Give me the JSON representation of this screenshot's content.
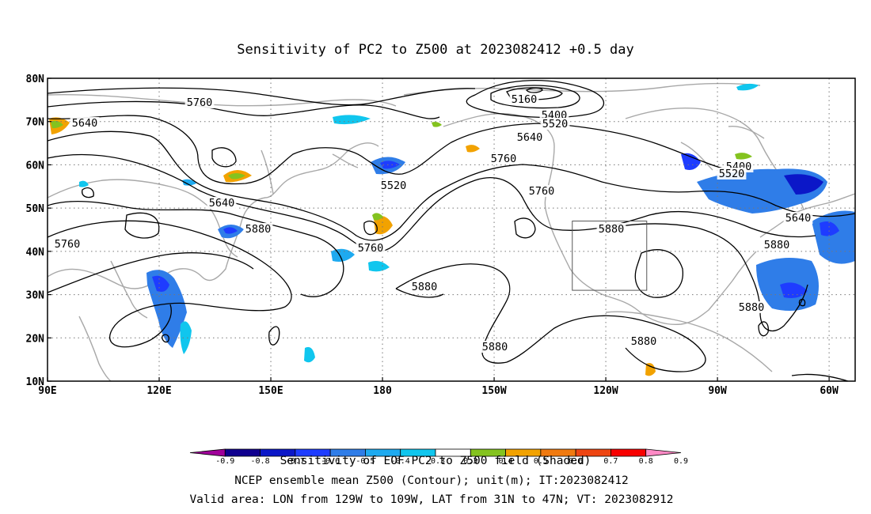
{
  "chart_data": {
    "type": "map",
    "title": "Sensitivity of PC2 to Z500 at 2023082412 +0.5 day",
    "x_tick_labels": [
      "90E",
      "120E",
      "150E",
      "180",
      "150W",
      "120W",
      "90W",
      "60W"
    ],
    "y_tick_labels": [
      "10N",
      "20N",
      "30N",
      "40N",
      "50N",
      "60N",
      "70N",
      "80N"
    ],
    "lon_range": [
      90,
      307
    ],
    "lat_range": [
      10,
      80
    ],
    "grid": "dotted",
    "contour_levels": [
      "5160",
      "5400",
      "5400",
      "5520",
      "5520",
      "5520",
      "5640",
      "5640",
      "5640",
      "5640",
      "5760",
      "5760",
      "5760",
      "5760",
      "5760",
      "5880",
      "5880",
      "5880",
      "5880",
      "5880",
      "5880",
      "5880"
    ],
    "valid_area": {
      "lon": [
        -129,
        -109
      ],
      "lat": [
        31,
        47
      ]
    },
    "colorbar": {
      "levels": [
        "-0.9",
        "-0.8",
        "-0.7",
        "-0.6",
        "-0.5",
        "-0.4",
        "-0.3",
        "0.3",
        "0.4",
        "0.5",
        "0.6",
        "0.7",
        "0.8",
        "0.9"
      ],
      "colors": [
        "#a0009a",
        "#10008f",
        "#0b17c8",
        "#1e3cff",
        "#2f7de8",
        "#1eaaf0",
        "#10c6ee",
        "#ffffff",
        "#84c31f",
        "#f2a200",
        "#f07a10",
        "#ee4512",
        "#f80000",
        "#ff8ac6"
      ]
    },
    "footer_lines": [
      "Sensitivity of EOF PC2 to Z500 field (Shaded)",
      "NCEP ensemble mean Z500 (Contour); unit(m); IT:2023082412",
      "Valid area: LON from 129W to 109W, LAT from 31N to 47N; VT: 2023082912"
    ]
  }
}
